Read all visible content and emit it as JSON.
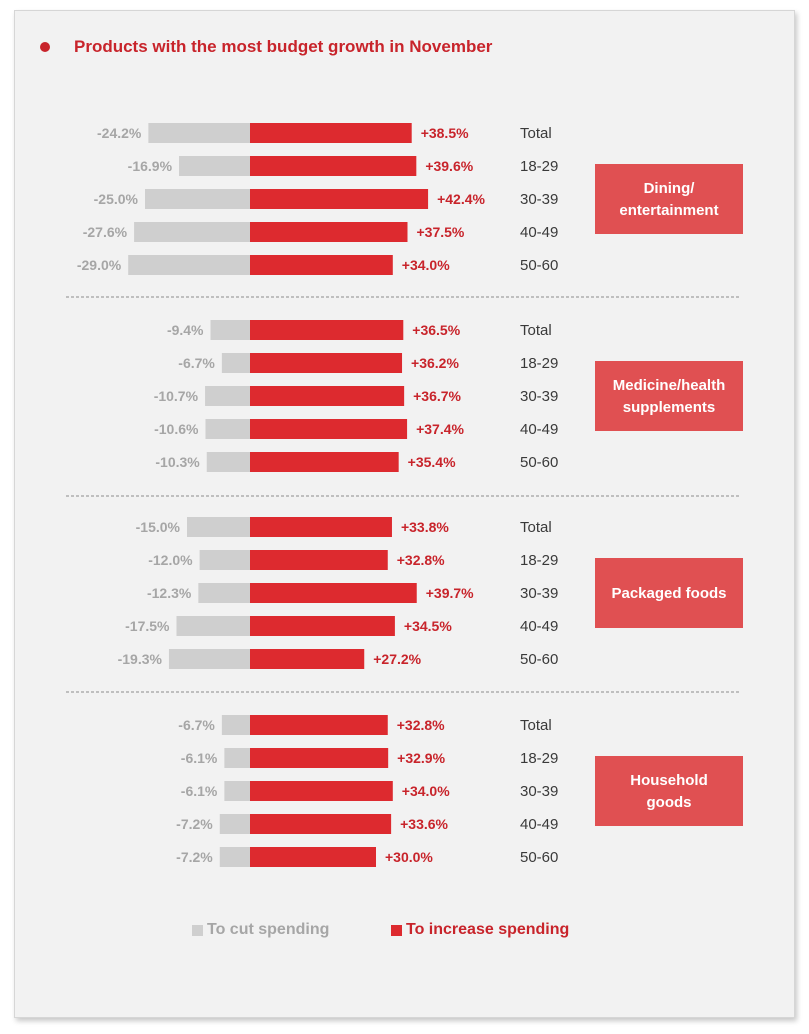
{
  "title": "Products with the most budget growth in November",
  "colors": {
    "accent": "#c8242b",
    "increase": "#dd2a2f",
    "cut": "#cfcfcf",
    "cut_text": "#a6a6a6",
    "panel": "#e05052",
    "group_label_text": "#ffffff",
    "category_text": "#3a3a3a"
  },
  "legend": {
    "cut_label": "To cut spending",
    "increase_label": "To increase spending"
  },
  "chart_data": {
    "type": "bar",
    "orientation": "horizontal-diverging",
    "title": "Products with the most budget growth in November",
    "categories": [
      "Total",
      "18-29",
      "30-39",
      "40-49",
      "50-60"
    ],
    "series_names": [
      "To cut spending",
      "To increase spending"
    ],
    "groups": [
      {
        "label_lines": [
          "Dining/",
          "entertainment"
        ],
        "cut": [
          -24.2,
          -16.9,
          -25.0,
          -27.6,
          -29.0
        ],
        "cut_labels": [
          "-24.2%",
          "-16.9%",
          "-25.0%",
          "-27.6%",
          "-29.0%"
        ],
        "increase": [
          38.5,
          39.6,
          42.4,
          37.5,
          34.0
        ],
        "increase_labels": [
          "+38.5%",
          "+39.6%",
          "+42.4%",
          "+37.5%",
          "+34.0%"
        ]
      },
      {
        "label_lines": [
          "Medicine/health",
          "supplements"
        ],
        "cut": [
          -9.4,
          -6.7,
          -10.7,
          -10.6,
          -10.3
        ],
        "cut_labels": [
          "-9.4%",
          "-6.7%",
          "-10.7%",
          "-10.6%",
          "-10.3%"
        ],
        "increase": [
          36.5,
          36.2,
          36.7,
          37.4,
          35.4
        ],
        "increase_labels": [
          "+36.5%",
          "+36.2%",
          "+36.7%",
          "+37.4%",
          "+35.4%"
        ]
      },
      {
        "label_lines": [
          "Packaged foods"
        ],
        "cut": [
          -15.0,
          -12.0,
          -12.3,
          -17.5,
          -19.3
        ],
        "cut_labels": [
          "-15.0%",
          "-12.0%",
          "-12.3%",
          "-17.5%",
          "-19.3%"
        ],
        "increase": [
          33.8,
          32.8,
          39.7,
          34.5,
          27.2
        ],
        "increase_labels": [
          "+33.8%",
          "+32.8%",
          "+39.7%",
          "+34.5%",
          "+27.2%"
        ]
      },
      {
        "label_lines": [
          "Household",
          "goods"
        ],
        "cut": [
          -6.7,
          -6.1,
          -6.1,
          -7.2,
          -7.2
        ],
        "cut_labels": [
          "-6.7%",
          "-6.1%",
          "-6.1%",
          "-7.2%",
          "-7.2%"
        ],
        "increase": [
          32.8,
          32.9,
          34.0,
          33.6,
          30.0
        ],
        "increase_labels": [
          "+32.8%",
          "+32.9%",
          "+34.0%",
          "+33.6%",
          "+30.0%"
        ]
      }
    ],
    "gridlines": false,
    "separators": "dashed",
    "legend_position": "bottom-center"
  }
}
